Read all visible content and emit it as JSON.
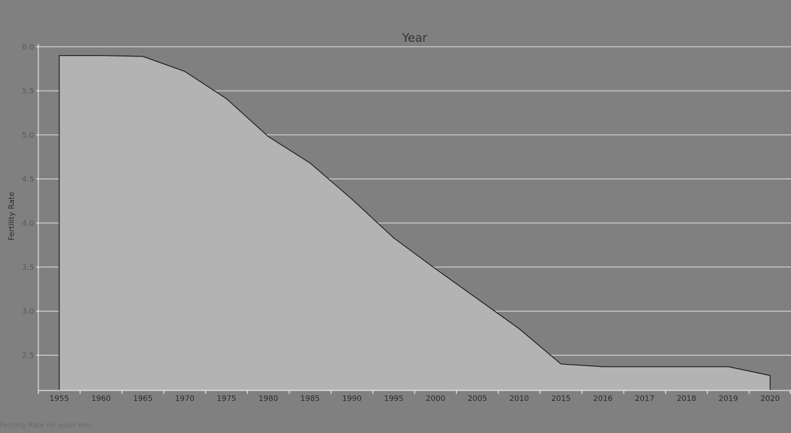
{
  "chart_data": {
    "type": "area",
    "title": "Year",
    "xlabel": "",
    "ylabel": "Fertility Rate",
    "categories": [
      "1955",
      "1960",
      "1965",
      "1970",
      "1975",
      "1980",
      "1985",
      "1990",
      "1995",
      "2000",
      "2005",
      "2010",
      "2015",
      "2016",
      "2017",
      "2018",
      "2019",
      "2020"
    ],
    "values": [
      5.9,
      5.9,
      5.89,
      5.72,
      5.41,
      4.98,
      4.68,
      4.27,
      3.83,
      3.48,
      3.14,
      2.8,
      2.4,
      2.37,
      2.37,
      2.37,
      2.37,
      2.27
    ],
    "yticks": [
      "2.5",
      "3.0",
      "3.5",
      "4.0",
      "4.5",
      "5.0",
      "5.5",
      "6.0"
    ],
    "ylim": [
      2.1,
      6.0
    ],
    "grid": true,
    "colors": {
      "background": "#808080",
      "area_fill": "#b3b3b3",
      "line": "#1a1a1a",
      "grid": "#e6e6e6"
    }
  },
  "caption": "Fertility Rate for each Year."
}
